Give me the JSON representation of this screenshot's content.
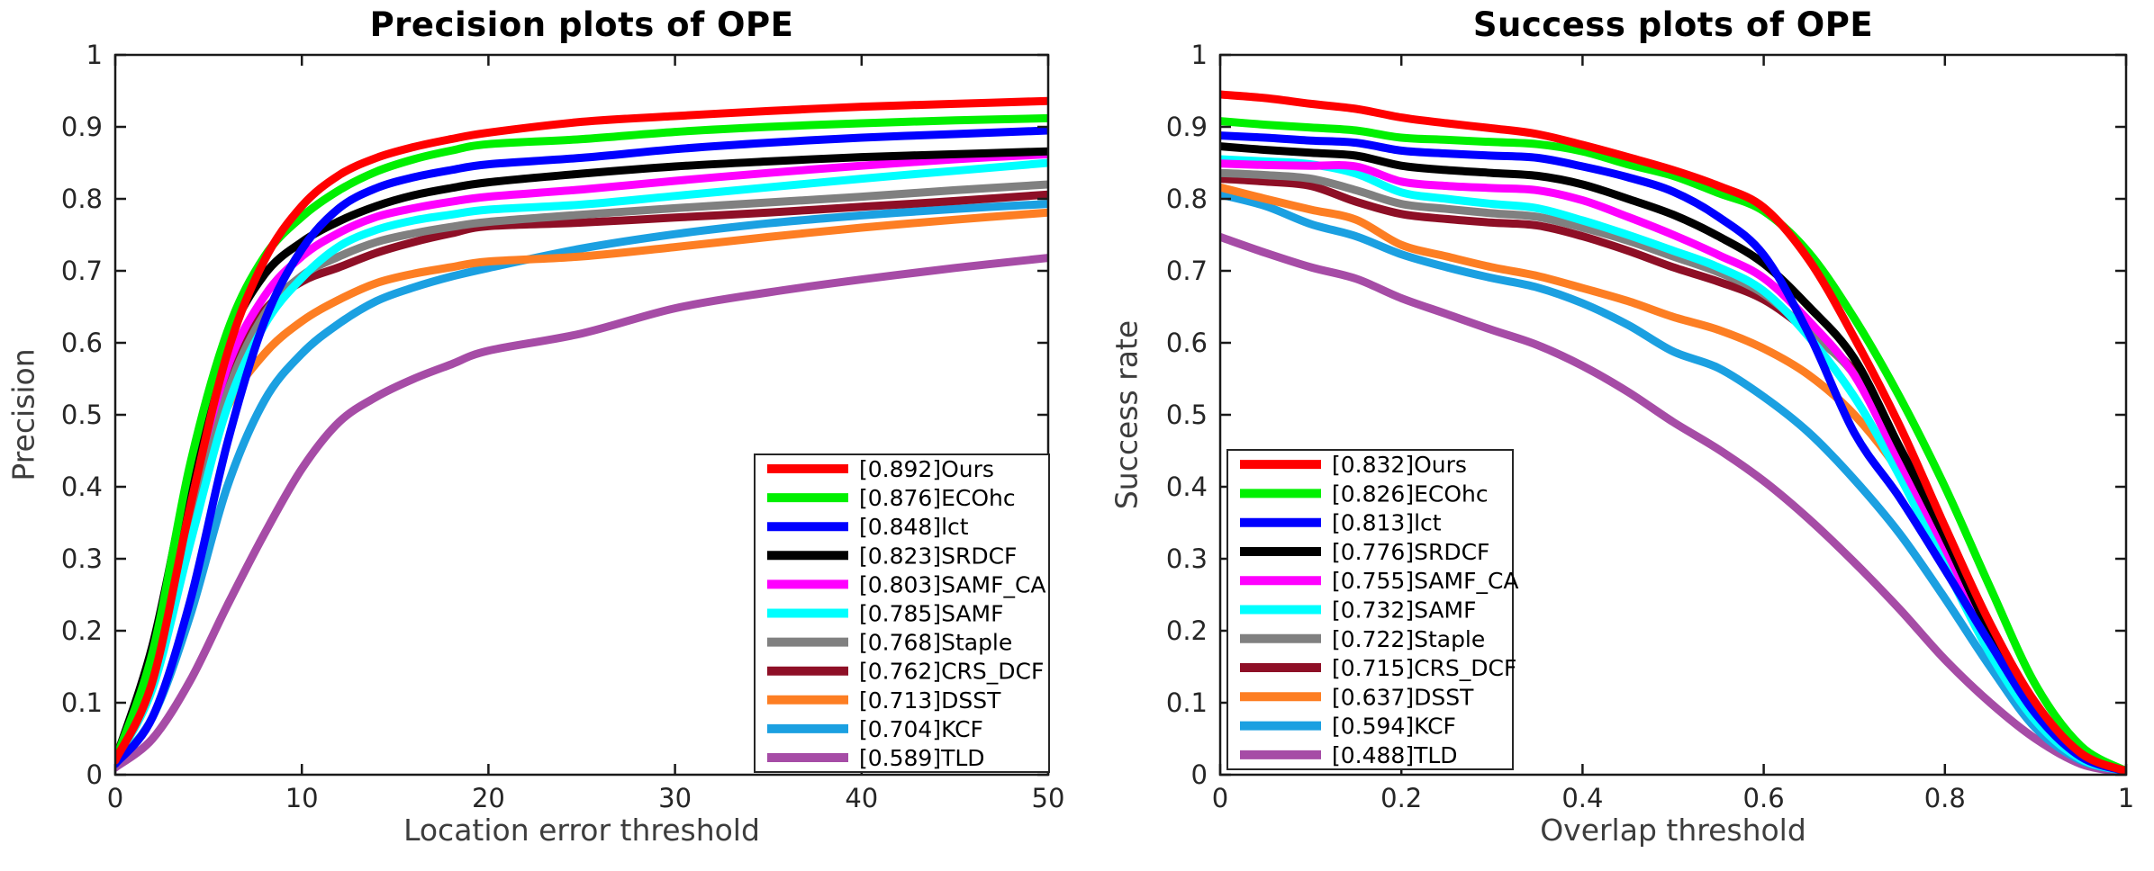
{
  "page": {
    "background": "#ffffff",
    "text_color": "#262626"
  },
  "chart_data": [
    {
      "type": "line",
      "title": "Precision plots of OPE",
      "xlabel": "Location error threshold",
      "ylabel": "Precision",
      "xlim": [
        0,
        50
      ],
      "ylim": [
        0,
        1
      ],
      "grid": false,
      "legend_position": "inside-bottom-right",
      "xticks": [
        0,
        10,
        20,
        30,
        40,
        50
      ],
      "xtick_labels": [
        "0",
        "10",
        "20",
        "30",
        "40",
        "50"
      ],
      "yticks": [
        0,
        0.1,
        0.2,
        0.3,
        0.4,
        0.5,
        0.6,
        0.7,
        0.8,
        0.9,
        1
      ],
      "ytick_labels": [
        "0",
        "0.1",
        "0.2",
        "0.3",
        "0.4",
        "0.5",
        "0.6",
        "0.7",
        "0.8",
        "0.9",
        "1"
      ],
      "x": [
        0,
        2,
        4,
        6,
        8,
        10,
        12,
        14,
        16,
        18,
        20,
        25,
        30,
        35,
        40,
        45,
        50
      ],
      "series": [
        {
          "name": "Ours",
          "score": "0.892",
          "color": "#ff0000",
          "values": [
            0.02,
            0.13,
            0.37,
            0.585,
            0.715,
            0.79,
            0.833,
            0.857,
            0.872,
            0.883,
            0.892,
            0.907,
            0.915,
            0.922,
            0.928,
            0.932,
            0.936
          ]
        },
        {
          "name": "ECOhc",
          "score": "0.876",
          "color": "#00f000",
          "values": [
            0.02,
            0.17,
            0.43,
            0.615,
            0.72,
            0.775,
            0.812,
            0.838,
            0.855,
            0.867,
            0.876,
            0.883,
            0.893,
            0.9,
            0.905,
            0.909,
            0.912
          ]
        },
        {
          "name": "lct",
          "score": "0.848",
          "color": "#0000ff",
          "values": [
            0.015,
            0.08,
            0.24,
            0.46,
            0.63,
            0.73,
            0.787,
            0.815,
            0.83,
            0.84,
            0.848,
            0.857,
            0.869,
            0.878,
            0.885,
            0.89,
            0.895
          ]
        },
        {
          "name": "SRDCF",
          "score": "0.823",
          "color": "#000000",
          "values": [
            0.02,
            0.18,
            0.42,
            0.6,
            0.695,
            0.74,
            0.769,
            0.79,
            0.805,
            0.815,
            0.823,
            0.835,
            0.845,
            0.852,
            0.858,
            0.862,
            0.866
          ]
        },
        {
          "name": "SAMF_CA",
          "score": "0.803",
          "color": "#ff00ff",
          "values": [
            0.02,
            0.15,
            0.38,
            0.565,
            0.665,
            0.72,
            0.753,
            0.775,
            0.787,
            0.796,
            0.803,
            0.813,
            0.825,
            0.836,
            0.846,
            0.855,
            0.862
          ]
        },
        {
          "name": "SAMF",
          "score": "0.785",
          "color": "#00ffff",
          "values": [
            0.02,
            0.12,
            0.32,
            0.51,
            0.625,
            0.69,
            0.734,
            0.757,
            0.77,
            0.778,
            0.785,
            0.792,
            0.804,
            0.816,
            0.828,
            0.839,
            0.85
          ]
        },
        {
          "name": "Staple",
          "score": "0.768",
          "color": "#808080",
          "values": [
            0.015,
            0.13,
            0.34,
            0.53,
            0.64,
            0.693,
            0.72,
            0.74,
            0.752,
            0.761,
            0.768,
            0.778,
            0.787,
            0.795,
            0.803,
            0.812,
            0.82
          ]
        },
        {
          "name": "CRS_DCF",
          "score": "0.762",
          "color": "#8e0f26",
          "values": [
            0.02,
            0.16,
            0.39,
            0.555,
            0.645,
            0.685,
            0.705,
            0.725,
            0.74,
            0.752,
            0.762,
            0.767,
            0.774,
            0.781,
            0.789,
            0.797,
            0.806
          ]
        },
        {
          "name": "DSST",
          "score": "0.713",
          "color": "#fd7e23",
          "values": [
            0.025,
            0.155,
            0.37,
            0.51,
            0.585,
            0.63,
            0.66,
            0.683,
            0.696,
            0.705,
            0.713,
            0.72,
            0.733,
            0.747,
            0.76,
            0.771,
            0.781
          ]
        },
        {
          "name": "KCF",
          "score": "0.704",
          "color": "#1ba0e1",
          "values": [
            0.015,
            0.08,
            0.22,
            0.4,
            0.52,
            0.585,
            0.627,
            0.658,
            0.677,
            0.692,
            0.704,
            0.731,
            0.751,
            0.766,
            0.777,
            0.786,
            0.793
          ]
        },
        {
          "name": "TLD",
          "score": "0.589",
          "color": "#a64ca6",
          "values": [
            0.01,
            0.05,
            0.13,
            0.235,
            0.335,
            0.425,
            0.49,
            0.525,
            0.55,
            0.57,
            0.589,
            0.613,
            0.648,
            0.67,
            0.688,
            0.704,
            0.718
          ]
        }
      ]
    },
    {
      "type": "line",
      "title": "Success plots of OPE",
      "xlabel": "Overlap threshold",
      "ylabel": "Success rate",
      "xlim": [
        0,
        1
      ],
      "ylim": [
        0,
        1
      ],
      "grid": false,
      "legend_position": "inside-bottom-left",
      "xticks": [
        0,
        0.2,
        0.4,
        0.6,
        0.8,
        1
      ],
      "xtick_labels": [
        "0",
        "0.2",
        "0.4",
        "0.6",
        "0.8",
        "1"
      ],
      "yticks": [
        0,
        0.1,
        0.2,
        0.3,
        0.4,
        0.5,
        0.6,
        0.7,
        0.8,
        0.9,
        1
      ],
      "ytick_labels": [
        "0",
        "0.1",
        "0.2",
        "0.3",
        "0.4",
        "0.5",
        "0.6",
        "0.7",
        "0.8",
        "0.9",
        "1"
      ],
      "x": [
        0,
        0.05,
        0.1,
        0.15,
        0.2,
        0.25,
        0.3,
        0.35,
        0.4,
        0.45,
        0.5,
        0.55,
        0.6,
        0.65,
        0.7,
        0.75,
        0.8,
        0.85,
        0.9,
        0.95,
        1
      ],
      "series": [
        {
          "name": "Ours",
          "score": "0.832",
          "color": "#ff0000",
          "values": [
            0.945,
            0.94,
            0.932,
            0.925,
            0.913,
            0.905,
            0.898,
            0.89,
            0.875,
            0.858,
            0.84,
            0.818,
            0.788,
            0.715,
            0.607,
            0.485,
            0.345,
            0.21,
            0.1,
            0.03,
            0.005
          ]
        },
        {
          "name": "ECOhc",
          "score": "0.826",
          "color": "#00f000",
          "values": [
            0.908,
            0.903,
            0.899,
            0.895,
            0.885,
            0.882,
            0.879,
            0.876,
            0.866,
            0.848,
            0.832,
            0.808,
            0.783,
            0.725,
            0.634,
            0.525,
            0.4,
            0.26,
            0.125,
            0.04,
            0.005
          ]
        },
        {
          "name": "lct",
          "score": "0.813",
          "color": "#0000ff",
          "values": [
            0.888,
            0.885,
            0.881,
            0.878,
            0.867,
            0.863,
            0.86,
            0.857,
            0.845,
            0.83,
            0.81,
            0.775,
            0.722,
            0.612,
            0.475,
            0.385,
            0.285,
            0.182,
            0.085,
            0.025,
            0.005
          ]
        },
        {
          "name": "SRDCF",
          "score": "0.776",
          "color": "#000000",
          "values": [
            0.873,
            0.868,
            0.864,
            0.86,
            0.846,
            0.84,
            0.836,
            0.832,
            0.82,
            0.8,
            0.778,
            0.748,
            0.71,
            0.65,
            0.578,
            0.455,
            0.33,
            0.198,
            0.092,
            0.028,
            0.005
          ]
        },
        {
          "name": "SAMF_CA",
          "score": "0.755",
          "color": "#ff00ff",
          "values": [
            0.849,
            0.847,
            0.846,
            0.845,
            0.824,
            0.818,
            0.815,
            0.812,
            0.798,
            0.775,
            0.75,
            0.722,
            0.69,
            0.63,
            0.555,
            0.435,
            0.315,
            0.188,
            0.088,
            0.026,
            0.005
          ]
        },
        {
          "name": "SAMF",
          "score": "0.732",
          "color": "#00ffff",
          "values": [
            0.855,
            0.852,
            0.848,
            0.835,
            0.809,
            0.8,
            0.793,
            0.787,
            0.77,
            0.75,
            0.728,
            0.705,
            0.672,
            0.608,
            0.525,
            0.415,
            0.29,
            0.168,
            0.075,
            0.022,
            0.005
          ]
        },
        {
          "name": "Staple",
          "score": "0.722",
          "color": "#808080",
          "values": [
            0.836,
            0.833,
            0.828,
            0.812,
            0.793,
            0.786,
            0.78,
            0.775,
            0.76,
            0.742,
            0.72,
            0.698,
            0.668,
            0.615,
            0.556,
            0.448,
            0.32,
            0.19,
            0.085,
            0.025,
            0.005
          ]
        },
        {
          "name": "CRS_DCF",
          "score": "0.715",
          "color": "#8e0f26",
          "values": [
            0.828,
            0.824,
            0.818,
            0.796,
            0.779,
            0.772,
            0.767,
            0.763,
            0.748,
            0.728,
            0.705,
            0.685,
            0.66,
            0.615,
            0.56,
            0.455,
            0.335,
            0.205,
            0.095,
            0.03,
            0.005
          ]
        },
        {
          "name": "DSST",
          "score": "0.637",
          "color": "#fd7e23",
          "values": [
            0.816,
            0.8,
            0.785,
            0.771,
            0.736,
            0.72,
            0.705,
            0.693,
            0.676,
            0.658,
            0.636,
            0.618,
            0.592,
            0.555,
            0.5,
            0.42,
            0.31,
            0.19,
            0.09,
            0.028,
            0.005
          ]
        },
        {
          "name": "KCF",
          "score": "0.594",
          "color": "#1ba0e1",
          "values": [
            0.806,
            0.79,
            0.765,
            0.748,
            0.723,
            0.705,
            0.69,
            0.677,
            0.655,
            0.625,
            0.588,
            0.565,
            0.525,
            0.475,
            0.41,
            0.335,
            0.245,
            0.15,
            0.065,
            0.02,
            0.005
          ]
        },
        {
          "name": "TLD",
          "score": "0.488",
          "color": "#a64ca6",
          "values": [
            0.747,
            0.725,
            0.705,
            0.689,
            0.662,
            0.64,
            0.618,
            0.597,
            0.568,
            0.532,
            0.49,
            0.452,
            0.408,
            0.355,
            0.295,
            0.23,
            0.16,
            0.1,
            0.05,
            0.015,
            0.003
          ]
        }
      ]
    }
  ]
}
